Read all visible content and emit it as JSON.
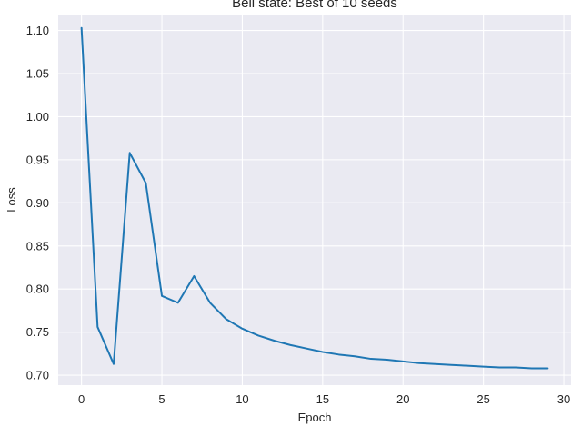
{
  "chart_data": {
    "type": "line",
    "title": "Bell state: Best of 10 seeds",
    "xlabel": "Epoch",
    "ylabel": "Loss",
    "xlim": [
      -1.45,
      30.45
    ],
    "ylim": [
      0.6885,
      1.1185
    ],
    "xticks": [
      0,
      5,
      10,
      15,
      20,
      25,
      30
    ],
    "yticks": [
      0.7,
      0.75,
      0.8,
      0.85,
      0.9,
      0.95,
      1.0,
      1.05,
      1.1
    ],
    "grid": true,
    "background_color": "#eaeaf2",
    "series": [
      {
        "color": "#1f77b4",
        "x": [
          0,
          1,
          2,
          3,
          4,
          5,
          6,
          7,
          8,
          9,
          10,
          11,
          12,
          13,
          14,
          15,
          16,
          17,
          18,
          19,
          20,
          21,
          22,
          23,
          24,
          25,
          26,
          27,
          28,
          29
        ],
        "values": [
          1.103,
          0.756,
          0.713,
          0.958,
          0.923,
          0.792,
          0.784,
          0.815,
          0.784,
          0.765,
          0.754,
          0.746,
          0.74,
          0.735,
          0.731,
          0.727,
          0.724,
          0.722,
          0.719,
          0.718,
          0.716,
          0.714,
          0.713,
          0.712,
          0.711,
          0.71,
          0.709,
          0.709,
          0.708,
          0.708
        ]
      }
    ]
  }
}
